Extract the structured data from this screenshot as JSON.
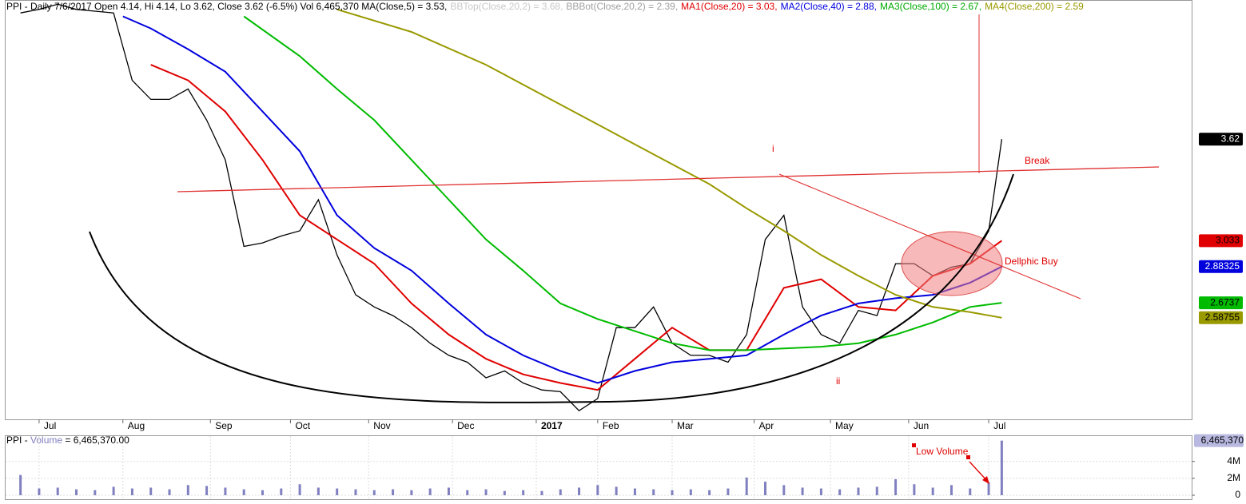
{
  "chart_data": [
    {
      "type": "line",
      "title_parts": [
        {
          "text": "PPI - Daily 7/6/2017 Open 4.14, Hi 4.14, Lo 3.62, Close 3.62 (-6.5%) Vol 6,465,370 MA(Close,5) = 3.53,",
          "color": "#000000"
        },
        {
          "text": "BBTop(Close,20,2) = 3.68,",
          "color": "#c8c8c8"
        },
        {
          "text": "BBBot(Close,20,2) = 2.39,",
          "color": "#a0a0a0"
        },
        {
          "text": "MA1(Close,20) = 3.03,",
          "color": "#e00000"
        },
        {
          "text": "MA2(Close,40) = 2.88,",
          "color": "#0000dd"
        },
        {
          "text": "MA3(Close,100) = 2.67,",
          "color": "#00aa00"
        },
        {
          "text": "MA4(Close,200) = 2.59",
          "color": "#999900"
        }
      ],
      "xlim": [
        -1.8,
        61.9
      ],
      "xticks": [
        {
          "value": 0,
          "label": "Jul"
        },
        {
          "value": 4.5,
          "label": "Aug"
        },
        {
          "value": 9.2,
          "label": "Sep"
        },
        {
          "value": 13.5,
          "label": "Oct"
        },
        {
          "value": 17.7,
          "label": "Nov"
        },
        {
          "value": 22.2,
          "label": "Dec"
        },
        {
          "value": 26.7,
          "label": "2017"
        },
        {
          "value": 30,
          "label": "Feb"
        },
        {
          "value": 34,
          "label": "Mar"
        },
        {
          "value": 38.4,
          "label": "Apr"
        },
        {
          "value": 42.5,
          "label": "May"
        },
        {
          "value": 46.7,
          "label": "Jun"
        },
        {
          "value": 51,
          "label": "Jul"
        }
      ],
      "ylim": [
        2.0,
        4.42
      ],
      "series": [
        {
          "color": "#000000",
          "label_color": "#ffffff",
          "width": 1.3,
          "x": [
            -1,
            0,
            1,
            2,
            3,
            4,
            5,
            6,
            7,
            8,
            9,
            10,
            11,
            12,
            13,
            14,
            15,
            16,
            17,
            18,
            19,
            20,
            21,
            22,
            23,
            24,
            25,
            26,
            27,
            28,
            29,
            30,
            31,
            32,
            33,
            34,
            35,
            36,
            37,
            38,
            39,
            40,
            41,
            42,
            43,
            44,
            45,
            46,
            47,
            48,
            49,
            50,
            51,
            51.7
          ],
          "values": [
            4.35,
            4.37,
            4.4,
            4.37,
            4.36,
            4.35,
            3.96,
            3.85,
            3.85,
            3.91,
            3.73,
            3.5,
            3.0,
            3.02,
            3.06,
            3.09,
            3.27,
            2.95,
            2.72,
            2.65,
            2.6,
            2.53,
            2.44,
            2.37,
            2.33,
            2.24,
            2.28,
            2.21,
            2.17,
            2.16,
            2.05,
            2.12,
            2.53,
            2.53,
            2.65,
            2.44,
            2.37,
            2.37,
            2.33,
            2.49,
            3.04,
            3.18,
            2.65,
            2.49,
            2.44,
            2.63,
            2.6,
            2.9,
            2.9,
            2.83,
            2.88,
            2.9,
            3.09,
            3.62
          ]
        },
        {
          "color": "#e00000",
          "label_color": "#000000",
          "width": 2,
          "x": [
            6,
            8,
            10,
            12,
            14,
            16,
            18,
            20,
            22,
            24,
            26,
            28,
            30,
            32,
            34,
            36,
            38,
            40,
            42,
            44,
            46,
            48,
            50,
            51.7
          ],
          "values": [
            4.05,
            3.96,
            3.78,
            3.5,
            3.18,
            3.04,
            2.9,
            2.67,
            2.49,
            2.35,
            2.26,
            2.21,
            2.17,
            2.35,
            2.53,
            2.4,
            2.4,
            2.76,
            2.81,
            2.65,
            2.63,
            2.83,
            2.9,
            3.033
          ]
        },
        {
          "color": "#0000dd",
          "label_color": "#ffffff",
          "width": 2,
          "x": [
            4.5,
            6,
            8,
            10,
            12,
            14,
            16,
            18,
            20,
            22,
            24,
            26,
            28,
            30,
            32,
            34,
            36,
            38,
            40,
            42,
            44,
            46,
            48,
            50,
            51.7
          ],
          "values": [
            4.33,
            4.26,
            4.14,
            4.01,
            3.78,
            3.55,
            3.18,
            2.99,
            2.86,
            2.67,
            2.49,
            2.37,
            2.28,
            2.21,
            2.28,
            2.33,
            2.35,
            2.37,
            2.49,
            2.6,
            2.67,
            2.7,
            2.72,
            2.79,
            2.88325
          ]
        },
        {
          "color": "#00bb00",
          "label_color": "#000000",
          "width": 2,
          "x": [
            11,
            14,
            16,
            18,
            20,
            22,
            24,
            26,
            28,
            30,
            32,
            34,
            36,
            38,
            40,
            42,
            44,
            46,
            48,
            50,
            51.7
          ],
          "values": [
            4.33,
            4.1,
            3.91,
            3.73,
            3.5,
            3.27,
            3.04,
            2.86,
            2.67,
            2.58,
            2.51,
            2.44,
            2.4,
            2.4,
            2.41,
            2.42,
            2.44,
            2.49,
            2.56,
            2.65,
            2.6737
          ]
        },
        {
          "color": "#999900",
          "label_color": "#000000",
          "width": 2,
          "x": [
            16,
            20,
            24,
            28,
            32,
            36,
            38,
            40,
            42,
            44,
            46,
            48,
            50,
            51.7
          ],
          "values": [
            4.37,
            4.24,
            4.05,
            3.82,
            3.59,
            3.36,
            3.22,
            3.09,
            2.95,
            2.83,
            2.72,
            2.65,
            2.62,
            2.58755
          ]
        }
      ],
      "annotations": [
        "i",
        "Break",
        "Dellphic Buy",
        "ii"
      ]
    },
    {
      "type": "bar",
      "title_parts": [
        {
          "text": "PPI - ",
          "color": "#000000"
        },
        {
          "text": "Volume",
          "color": "#8080c0"
        },
        {
          "text": " = 6,465,370.00",
          "color": "#000000"
        }
      ],
      "color": "#8080c0",
      "xlim": [
        -1.8,
        61.9
      ],
      "ylim": [
        0,
        7000000
      ],
      "yticks": [
        0,
        {
          "value": 2000000,
          "label": "2M"
        },
        {
          "value": 4000000,
          "label": "4M"
        }
      ],
      "x": [
        -1,
        0,
        1,
        2,
        3,
        4,
        5,
        6,
        7,
        8,
        9,
        10,
        11,
        12,
        13,
        14,
        15,
        16,
        17,
        18,
        19,
        20,
        21,
        22,
        23,
        24,
        25,
        26,
        27,
        28,
        29,
        30,
        31,
        32,
        33,
        34,
        35,
        36,
        37,
        38,
        39,
        40,
        41,
        42,
        43,
        44,
        45,
        46,
        47,
        48,
        49,
        50,
        51,
        51.7
      ],
      "values": [
        2400000,
        800000,
        900000,
        700000,
        600000,
        1000000,
        800000,
        900000,
        700000,
        1200000,
        1100000,
        900000,
        700000,
        600000,
        800000,
        1300000,
        900000,
        800000,
        700000,
        600000,
        700000,
        600000,
        800000,
        900000,
        600000,
        700000,
        500000,
        600000,
        500000,
        700000,
        900000,
        1200000,
        1000000,
        800000,
        700000,
        600000,
        700000,
        600000,
        800000,
        2100000,
        1600000,
        1200000,
        900000,
        800000,
        700000,
        900000,
        1000000,
        1900000,
        1300000,
        900000,
        1200000,
        800000,
        1500000,
        6465370
      ],
      "last_value_label": "6,465,370",
      "annotations": [
        "Low Volume"
      ]
    }
  ]
}
